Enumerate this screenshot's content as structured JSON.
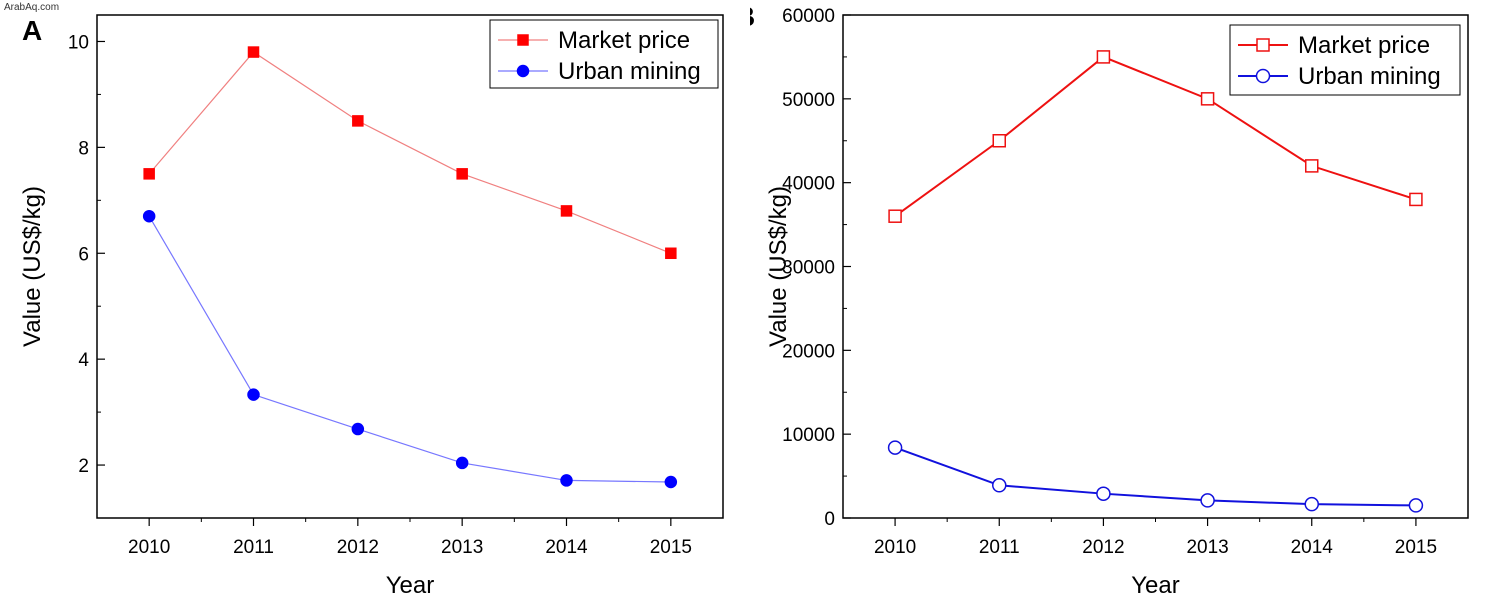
{
  "watermark": "ArabAq.com",
  "chart_data": [
    {
      "panel_label": "A",
      "type": "line",
      "xlabel": "Year",
      "ylabel": "Value (US$/kg)",
      "x": [
        2010,
        2011,
        2012,
        2013,
        2014,
        2015
      ],
      "xlim": [
        2009.5,
        2015.5
      ],
      "ylim": [
        1,
        10.5
      ],
      "yticks": [
        2,
        4,
        6,
        8,
        10
      ],
      "y_tick_labels": [
        "2",
        "4",
        "6",
        "8",
        "10"
      ],
      "series": [
        {
          "name": "Market price",
          "values": [
            7.5,
            9.8,
            8.5,
            7.5,
            6.8,
            6.0
          ],
          "color": "#ff0000",
          "line_color": "#f08080",
          "marker": "square",
          "filled": true
        },
        {
          "name": "Urban mining",
          "values": [
            6.7,
            3.33,
            2.68,
            2.04,
            1.71,
            1.68
          ],
          "color": "#0000ff",
          "line_color": "#7777ff",
          "marker": "circle",
          "filled": true
        }
      ],
      "legend": "top-right"
    },
    {
      "panel_label": "B",
      "type": "line",
      "xlabel": "Year",
      "ylabel": "Value (US$/kg)",
      "x": [
        2010,
        2011,
        2012,
        2013,
        2014,
        2015
      ],
      "xlim": [
        2009.5,
        2015.5
      ],
      "ylim": [
        0,
        60000
      ],
      "yticks": [
        0,
        10000,
        20000,
        30000,
        40000,
        50000,
        60000
      ],
      "y_tick_labels": [
        "0",
        "10000",
        "20000",
        "30000",
        "40000",
        "50000",
        "60000"
      ],
      "series": [
        {
          "name": "Market price",
          "values": [
            36000,
            45000,
            55000,
            50000,
            42000,
            38000
          ],
          "color": "#ee1111",
          "line_color": "#ee1111",
          "marker": "square",
          "filled": false
        },
        {
          "name": "Urban mining",
          "values": [
            8400,
            3900,
            2900,
            2100,
            1650,
            1500
          ],
          "color": "#1111dd",
          "line_color": "#1111dd",
          "marker": "circle",
          "filled": false
        }
      ],
      "legend": "top-right"
    }
  ]
}
